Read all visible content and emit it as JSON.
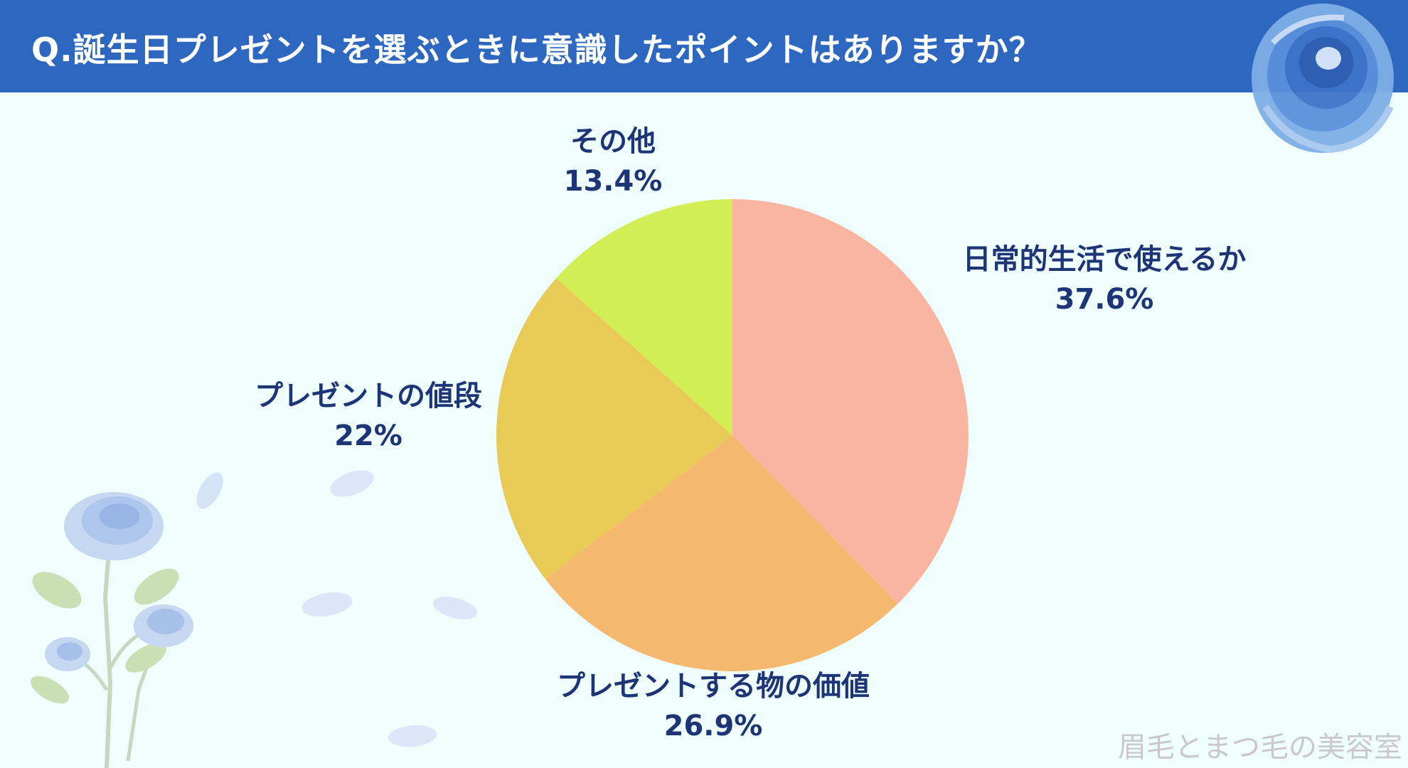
{
  "header": {
    "title": "Q.誕生日プレゼントを選ぶときに意識したポイントはありますか？"
  },
  "watermark": {
    "text": "眉毛とまつ毛の美容室"
  },
  "colors": {
    "header_bg": "#2d67c0",
    "background": "#effdfd",
    "label_text": "#1d3476"
  },
  "chart_data": {
    "type": "pie",
    "title": "Q.誕生日プレゼントを選ぶときに意識したポイントはありますか？",
    "slices": [
      {
        "label": "日常的生活で使えるか",
        "value": 37.6,
        "value_label": "37.6%",
        "color": "#f8b5a2"
      },
      {
        "label": "プレゼントする物の価値",
        "value": 26.9,
        "value_label": "26.9%",
        "color": "#f5b86f"
      },
      {
        "label": "プレゼントの値段",
        "value": 22,
        "value_label": "22%",
        "color": "#e8ca55"
      },
      {
        "label": "その他",
        "value": 13.4,
        "value_label": "13.4%",
        "color": "#d3ee55"
      }
    ],
    "start_angle": "12 o'clock",
    "direction": "clockwise",
    "legend": "none"
  }
}
